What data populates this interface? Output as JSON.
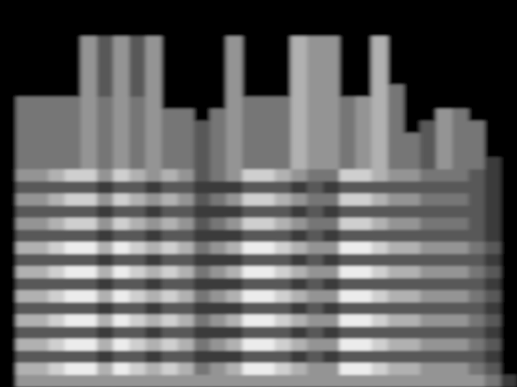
{
  "chart_data": {
    "type": "heatmap",
    "tick_labels": false,
    "cells": [
      [
        0,
        0,
        0,
        0,
        0,
        0,
        0,
        0,
        0,
        0,
        0,
        0,
        0,
        0,
        0,
        0,
        0,
        0,
        0,
        0,
        0,
        0,
        0,
        0,
        0,
        0,
        0,
        0,
        0,
        0,
        0,
        0
      ],
      [
        0,
        0,
        0,
        0,
        0,
        0,
        0,
        0,
        0,
        0,
        0,
        0,
        0,
        0,
        0,
        0,
        0,
        0,
        0,
        0,
        0,
        0,
        0,
        0,
        0,
        0,
        0,
        0,
        0,
        0,
        0,
        0
      ],
      [
        0,
        0,
        0,
        0,
        0,
        0,
        0,
        0,
        0,
        0,
        0,
        0,
        0,
        0,
        0,
        0,
        0,
        0,
        0,
        0,
        0,
        0,
        0,
        0,
        0,
        0,
        0,
        0,
        0,
        0,
        0,
        0
      ],
      [
        0,
        0,
        0,
        0,
        0,
        5,
        3,
        5,
        3,
        5,
        0,
        0,
        0,
        0,
        5,
        0,
        0,
        0,
        6,
        5,
        5,
        0,
        0,
        6,
        0,
        0,
        0,
        0,
        0,
        0,
        0,
        0
      ],
      [
        0,
        0,
        0,
        0,
        0,
        5,
        3,
        5,
        3,
        5,
        0,
        0,
        0,
        0,
        5,
        0,
        0,
        0,
        6,
        5,
        5,
        0,
        0,
        6,
        0,
        0,
        0,
        0,
        0,
        0,
        0,
        0
      ],
      [
        0,
        0,
        0,
        0,
        0,
        5,
        3,
        5,
        3,
        5,
        0,
        0,
        0,
        0,
        5,
        0,
        0,
        0,
        6,
        5,
        5,
        0,
        0,
        6,
        0,
        0,
        0,
        0,
        0,
        0,
        0,
        0
      ],
      [
        0,
        0,
        0,
        0,
        0,
        5,
        3,
        5,
        3,
        5,
        0,
        0,
        0,
        0,
        5,
        0,
        0,
        0,
        6,
        5,
        5,
        0,
        0,
        6,
        0,
        0,
        0,
        0,
        0,
        0,
        0,
        0
      ],
      [
        0,
        0,
        0,
        0,
        0,
        5,
        3,
        5,
        3,
        5,
        0,
        0,
        0,
        0,
        5,
        0,
        0,
        0,
        6,
        5,
        5,
        0,
        0,
        6,
        4,
        0,
        0,
        0,
        0,
        0,
        0,
        0
      ],
      [
        0,
        4,
        4,
        4,
        4,
        5,
        4,
        5,
        4,
        5,
        0,
        0,
        0,
        0,
        5,
        4,
        4,
        4,
        6,
        5,
        5,
        4,
        5,
        6,
        4,
        0,
        0,
        0,
        0,
        0,
        0,
        0
      ],
      [
        0,
        4,
        4,
        4,
        4,
        5,
        4,
        5,
        4,
        5,
        4,
        4,
        0,
        4,
        5,
        4,
        4,
        4,
        6,
        5,
        5,
        4,
        5,
        6,
        4,
        0,
        0,
        5,
        4,
        0,
        0,
        0
      ],
      [
        0,
        4,
        4,
        4,
        4,
        5,
        4,
        5,
        4,
        5,
        4,
        4,
        3,
        4,
        5,
        4,
        4,
        4,
        6,
        5,
        5,
        4,
        5,
        6,
        4,
        0,
        3,
        5,
        4,
        4,
        0,
        0
      ],
      [
        0,
        4,
        4,
        4,
        4,
        5,
        4,
        5,
        4,
        5,
        4,
        4,
        3,
        4,
        5,
        4,
        4,
        4,
        6,
        5,
        5,
        4,
        5,
        6,
        4,
        4,
        3,
        5,
        4,
        4,
        0,
        0
      ],
      [
        0,
        4,
        4,
        4,
        4,
        5,
        4,
        5,
        4,
        5,
        4,
        4,
        3,
        4,
        5,
        4,
        4,
        4,
        6,
        5,
        5,
        4,
        5,
        6,
        4,
        4,
        3,
        5,
        4,
        4,
        0,
        0
      ],
      [
        0,
        4,
        4,
        4,
        4,
        5,
        4,
        5,
        4,
        5,
        4,
        4,
        3,
        4,
        5,
        4,
        4,
        4,
        6,
        5,
        5,
        4,
        5,
        6,
        4,
        4,
        3,
        5,
        4,
        4,
        2,
        0
      ],
      [
        0,
        5,
        5,
        6,
        7,
        7,
        5,
        7,
        6,
        5,
        6,
        5,
        3,
        4,
        5,
        7,
        7,
        6,
        5,
        4,
        4,
        7,
        7,
        6,
        5,
        5,
        4,
        4,
        4,
        3,
        2,
        0
      ],
      [
        0,
        3,
        3,
        3,
        3,
        3,
        2,
        3,
        3,
        2,
        3,
        3,
        2,
        2,
        2,
        3,
        3,
        3,
        2,
        3,
        2,
        3,
        3,
        3,
        3,
        3,
        3,
        3,
        3,
        3,
        2,
        0
      ],
      [
        0,
        5,
        5,
        6,
        7,
        7,
        5,
        7,
        6,
        5,
        6,
        5,
        3,
        4,
        5,
        7,
        7,
        6,
        5,
        4,
        4,
        7,
        7,
        6,
        5,
        5,
        4,
        4,
        4,
        3,
        2,
        0
      ],
      [
        0,
        3,
        3,
        3,
        3,
        3,
        2,
        3,
        3,
        2,
        3,
        3,
        2,
        2,
        2,
        3,
        3,
        3,
        2,
        3,
        2,
        3,
        3,
        3,
        3,
        3,
        3,
        3,
        3,
        3,
        2,
        0
      ],
      [
        0,
        5,
        5,
        6,
        7,
        7,
        5,
        7,
        6,
        5,
        6,
        5,
        3,
        4,
        5,
        7,
        7,
        6,
        5,
        4,
        4,
        7,
        7,
        6,
        5,
        5,
        4,
        4,
        4,
        3,
        2,
        0
      ],
      [
        0,
        3,
        3,
        3,
        3,
        3,
        2,
        3,
        3,
        2,
        3,
        3,
        2,
        2,
        2,
        3,
        3,
        3,
        2,
        3,
        2,
        3,
        3,
        3,
        3,
        3,
        3,
        3,
        3,
        3,
        2,
        0
      ],
      [
        0,
        6,
        6,
        7,
        8,
        8,
        6,
        8,
        7,
        6,
        7,
        6,
        4,
        5,
        6,
        8,
        8,
        7,
        6,
        5,
        5,
        8,
        8,
        7,
        6,
        6,
        5,
        5,
        5,
        4,
        3,
        0
      ],
      [
        0,
        3,
        3,
        3,
        3,
        3,
        2,
        3,
        3,
        2,
        3,
        3,
        2,
        2,
        2,
        3,
        3,
        3,
        2,
        3,
        2,
        3,
        3,
        3,
        3,
        3,
        3,
        3,
        3,
        3,
        2,
        0
      ],
      [
        0,
        6,
        6,
        7,
        8,
        8,
        6,
        8,
        7,
        6,
        7,
        6,
        4,
        5,
        6,
        8,
        8,
        7,
        6,
        5,
        5,
        8,
        8,
        7,
        6,
        6,
        5,
        5,
        5,
        4,
        3,
        0
      ],
      [
        0,
        3,
        3,
        3,
        3,
        3,
        2,
        3,
        3,
        2,
        3,
        3,
        2,
        2,
        2,
        3,
        3,
        3,
        2,
        3,
        2,
        3,
        3,
        3,
        3,
        3,
        3,
        3,
        3,
        3,
        2,
        0
      ],
      [
        0,
        6,
        6,
        7,
        8,
        8,
        6,
        8,
        7,
        6,
        7,
        6,
        4,
        5,
        6,
        8,
        8,
        7,
        6,
        5,
        5,
        8,
        8,
        7,
        6,
        6,
        5,
        5,
        5,
        4,
        3,
        0
      ],
      [
        0,
        3,
        3,
        3,
        3,
        3,
        2,
        3,
        3,
        2,
        3,
        3,
        2,
        2,
        2,
        3,
        3,
        3,
        2,
        3,
        2,
        3,
        3,
        3,
        3,
        3,
        3,
        3,
        3,
        3,
        2,
        0
      ],
      [
        0,
        6,
        6,
        7,
        8,
        8,
        6,
        8,
        7,
        6,
        7,
        6,
        4,
        5,
        6,
        8,
        8,
        7,
        6,
        5,
        5,
        8,
        8,
        7,
        6,
        6,
        5,
        5,
        5,
        4,
        3,
        0
      ],
      [
        0,
        3,
        3,
        3,
        3,
        3,
        2,
        3,
        3,
        2,
        3,
        3,
        2,
        2,
        2,
        3,
        3,
        3,
        2,
        3,
        2,
        3,
        3,
        3,
        3,
        3,
        3,
        3,
        3,
        3,
        2,
        0
      ],
      [
        0,
        6,
        6,
        7,
        8,
        8,
        6,
        8,
        7,
        6,
        7,
        6,
        4,
        5,
        6,
        8,
        8,
        7,
        6,
        5,
        5,
        8,
        8,
        7,
        6,
        6,
        5,
        5,
        5,
        4,
        3,
        0
      ],
      [
        0,
        3,
        3,
        3,
        3,
        3,
        2,
        3,
        3,
        2,
        3,
        3,
        2,
        2,
        2,
        3,
        3,
        3,
        2,
        3,
        2,
        3,
        3,
        3,
        3,
        3,
        3,
        3,
        3,
        3,
        2,
        0
      ],
      [
        0,
        6,
        6,
        7,
        8,
        8,
        6,
        8,
        7,
        6,
        7,
        6,
        4,
        5,
        6,
        8,
        8,
        7,
        6,
        5,
        5,
        8,
        8,
        7,
        6,
        6,
        5,
        5,
        5,
        4,
        3,
        0
      ],
      [
        0,
        5,
        5,
        5,
        5,
        5,
        5,
        5,
        5,
        5,
        5,
        5,
        5,
        5,
        5,
        5,
        5,
        5,
        5,
        5,
        5,
        5,
        5,
        5,
        5,
        5,
        5,
        5,
        5,
        5,
        4,
        2
      ]
    ]
  }
}
